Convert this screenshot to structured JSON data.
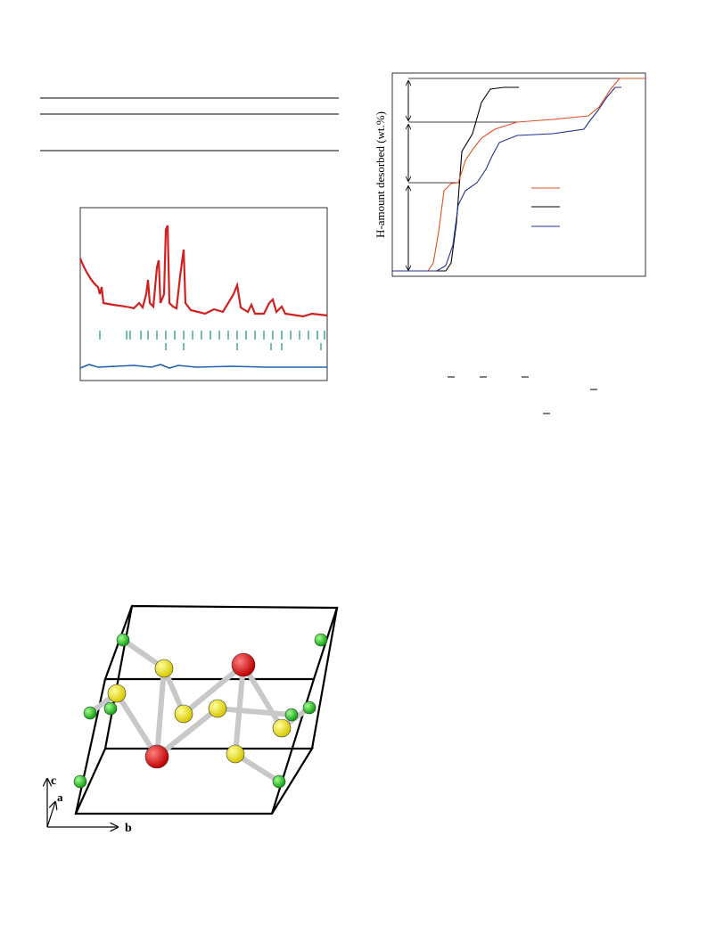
{
  "figure_right": {
    "y_label": "H-amount desorbed (wt.%)"
  },
  "figure_structure": {
    "axes": [
      "c",
      "a",
      "b"
    ]
  }
}
